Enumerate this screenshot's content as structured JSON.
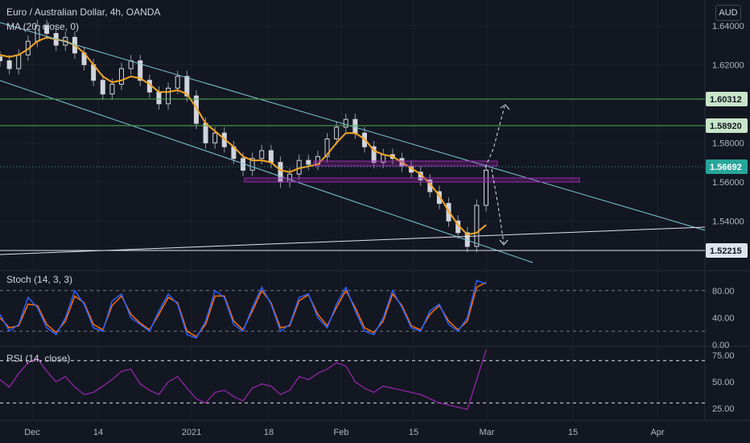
{
  "header": {
    "symbol_line": "Euro / Australian Dollar, 4h, OANDA",
    "ma_label": "MA (20, close, 0)",
    "currency_button": "AUD"
  },
  "colors": {
    "background": "#131722",
    "grid": "#1e222d",
    "candle_up": "#d1d4dc",
    "candle_down": "#d1d4dc",
    "ma": "#f5a623",
    "channel": "#7ec8d6",
    "hline_green": "#4caf50",
    "zone": "#9c27b0",
    "stoch_k": "#2962ff",
    "stoch_d": "#ff6d00",
    "rsi": "#9c27b0",
    "tag_green_bg": "#c8e6c9",
    "tag_cyan_bg": "#26a69a"
  },
  "chart_data": [
    {
      "type": "line",
      "title": "Euro / Australian Dollar, 4h, OANDA",
      "indicator": "MA (20, close, 0)",
      "ylim": [
        1.515,
        1.649
      ],
      "yticks": [
        "1.64000",
        "1.62000",
        "1.58000",
        "1.56000",
        "1.54000"
      ],
      "price_tags": [
        {
          "label": "1.60312",
          "value": 1.60312,
          "color": "green"
        },
        {
          "label": "1.58920",
          "value": 1.5892,
          "color": "green"
        },
        {
          "label": "1.56692",
          "value": 1.56692,
          "color": "cyan"
        },
        {
          "label": "1.52215",
          "value": 1.52215,
          "color": "white"
        }
      ],
      "xticks": [
        "Dec",
        "14",
        "2021",
        "18",
        "Feb",
        "15",
        "Mar",
        "15",
        "Apr"
      ],
      "close_series": [
        1.622,
        1.618,
        1.625,
        1.632,
        1.64,
        1.636,
        1.63,
        1.634,
        1.626,
        1.62,
        1.612,
        1.605,
        1.61,
        1.618,
        1.622,
        1.612,
        1.606,
        1.6,
        1.608,
        1.614,
        1.604,
        1.59,
        1.58,
        1.585,
        1.578,
        1.572,
        1.566,
        1.572,
        1.576,
        1.57,
        1.56,
        1.564,
        1.571,
        1.569,
        1.573,
        1.582,
        1.588,
        1.592,
        1.585,
        1.578,
        1.57,
        1.574,
        1.572,
        1.568,
        1.565,
        1.561,
        1.555,
        1.549,
        1.54,
        1.534,
        1.527,
        1.548,
        1.566
      ],
      "ma_series": [
        1.625,
        1.624,
        1.625,
        1.628,
        1.632,
        1.634,
        1.633,
        1.632,
        1.63,
        1.626,
        1.62,
        1.614,
        1.611,
        1.612,
        1.614,
        1.613,
        1.61,
        1.606,
        1.606,
        1.607,
        1.605,
        1.598,
        1.59,
        1.586,
        1.582,
        1.578,
        1.573,
        1.571,
        1.571,
        1.57,
        1.566,
        1.565,
        1.567,
        1.568,
        1.569,
        1.574,
        1.58,
        1.585,
        1.585,
        1.582,
        1.576,
        1.574,
        1.573,
        1.57,
        1.567,
        1.564,
        1.559,
        1.553,
        1.545,
        1.538,
        1.533,
        1.534,
        1.538
      ]
    },
    {
      "type": "line",
      "title": "Stoch (14, 3, 3)",
      "ylim": [
        0,
        100
      ],
      "yticks": [
        "80.00",
        "40.00",
        "0.00"
      ],
      "levels": [
        80,
        20
      ],
      "k_series": [
        45,
        20,
        30,
        70,
        55,
        25,
        15,
        40,
        80,
        60,
        25,
        20,
        65,
        75,
        40,
        30,
        20,
        50,
        75,
        60,
        15,
        10,
        35,
        80,
        70,
        30,
        20,
        55,
        85,
        60,
        20,
        30,
        70,
        75,
        40,
        25,
        60,
        85,
        50,
        20,
        15,
        40,
        80,
        55,
        25,
        20,
        50,
        60,
        30,
        20,
        40,
        95,
        90
      ],
      "d_series": [
        40,
        25,
        28,
        60,
        58,
        30,
        18,
        35,
        72,
        62,
        30,
        22,
        58,
        72,
        45,
        32,
        22,
        45,
        70,
        62,
        20,
        12,
        30,
        72,
        72,
        35,
        22,
        50,
        80,
        62,
        25,
        28,
        65,
        74,
        45,
        28,
        55,
        80,
        55,
        25,
        18,
        35,
        75,
        58,
        28,
        22,
        45,
        58,
        35,
        22,
        35,
        85,
        92
      ]
    },
    {
      "type": "line",
      "title": "RSI (14, close)",
      "ylim": [
        15,
        82
      ],
      "yticks": [
        "75.00",
        "50.00",
        "25.00"
      ],
      "levels": [
        70,
        30
      ],
      "series": [
        52,
        45,
        58,
        68,
        72,
        60,
        50,
        55,
        45,
        38,
        40,
        46,
        52,
        60,
        62,
        48,
        42,
        38,
        50,
        55,
        44,
        34,
        30,
        40,
        42,
        36,
        32,
        44,
        48,
        46,
        38,
        42,
        55,
        52,
        58,
        62,
        68,
        65,
        50,
        44,
        40,
        46,
        44,
        42,
        40,
        38,
        34,
        30,
        28,
        26,
        24,
        52,
        80
      ]
    }
  ]
}
